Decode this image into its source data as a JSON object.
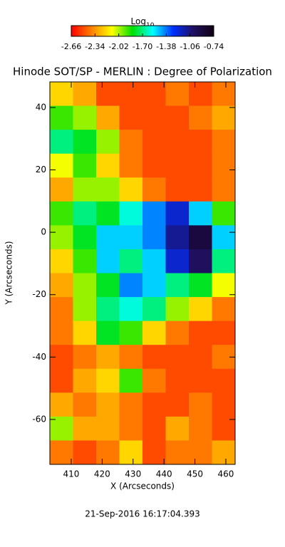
{
  "chart_data": {
    "type": "heatmap",
    "title": "Hinode SOT/SP - MERLIN : Degree of Polarization",
    "x_label": "X (Arcseconds)",
    "y_label": "Y (Arcseconds)",
    "footer": "21-Sep-2016 16:17:04.393",
    "colorbar_label": "Log",
    "colorbar_label_sub": "10",
    "clim": [
      -2.66,
      -0.74
    ],
    "cticks": [
      -2.66,
      -2.34,
      -2.02,
      {
        "value": -1.7,
        "label": "-1.70"
      },
      -1.38,
      -1.06,
      -0.74
    ],
    "colormap": [
      "#ff0000",
      "#ff8000",
      "#ffff00",
      "#00e000",
      "#00ffff",
      "#0030ff",
      "#201060",
      "#100010"
    ],
    "xlim": [
      403.1,
      463
    ],
    "ylim": [
      -74.4,
      48.2
    ],
    "xticks": [
      410,
      420,
      430,
      440,
      450,
      460
    ],
    "yticks": [
      -60,
      -40,
      -20,
      0,
      20,
      40
    ],
    "z": [
      [
        -2.2,
        -2.3,
        -2.5,
        -2.5,
        -2.5,
        -2.4,
        -2.5,
        -2.4
      ],
      [
        -1.9,
        -2.0,
        -2.3,
        -2.5,
        -2.5,
        -2.5,
        -2.4,
        -2.3
      ],
      [
        -1.7,
        -1.8,
        -2.0,
        -2.4,
        -2.5,
        -2.5,
        -2.5,
        -2.4
      ],
      [
        -2.1,
        -1.9,
        -2.2,
        -2.4,
        -2.5,
        -2.5,
        -2.5,
        -2.4
      ],
      [
        -2.3,
        -2.0,
        -2.0,
        -2.2,
        -2.4,
        -2.5,
        -2.5,
        -2.4
      ],
      [
        -1.9,
        -1.7,
        -1.8,
        -1.6,
        -1.4,
        -1.2,
        -1.5,
        -1.9
      ],
      [
        -2.0,
        -1.8,
        -1.5,
        -1.5,
        -1.4,
        -1.1,
        -0.9,
        -1.5
      ],
      [
        -2.2,
        -1.9,
        -1.5,
        -1.7,
        -1.5,
        -1.2,
        -1.0,
        -1.7
      ],
      [
        -2.3,
        -2.0,
        -1.8,
        -1.4,
        -1.5,
        -1.7,
        -1.8,
        -2.1
      ],
      [
        -2.4,
        -2.0,
        -1.7,
        -1.6,
        -1.7,
        -2.0,
        -2.2,
        -2.4
      ],
      [
        -2.4,
        -2.2,
        -1.8,
        -1.9,
        -2.2,
        -2.4,
        -2.5,
        -2.5
      ],
      [
        -2.5,
        -2.4,
        -2.3,
        -2.4,
        -2.5,
        -2.5,
        -2.5,
        -2.4
      ],
      [
        -2.5,
        -2.3,
        -2.2,
        -1.9,
        -2.4,
        -2.5,
        -2.5,
        -2.5
      ],
      [
        -2.3,
        -2.4,
        -2.3,
        -2.4,
        -2.5,
        -2.5,
        -2.4,
        -2.5
      ],
      [
        -2.0,
        -2.3,
        -2.3,
        -2.4,
        -2.5,
        -2.3,
        -2.4,
        -2.5
      ],
      [
        -2.4,
        -2.5,
        -2.4,
        -2.2,
        -2.5,
        -2.4,
        -2.4,
        -2.3
      ]
    ]
  }
}
